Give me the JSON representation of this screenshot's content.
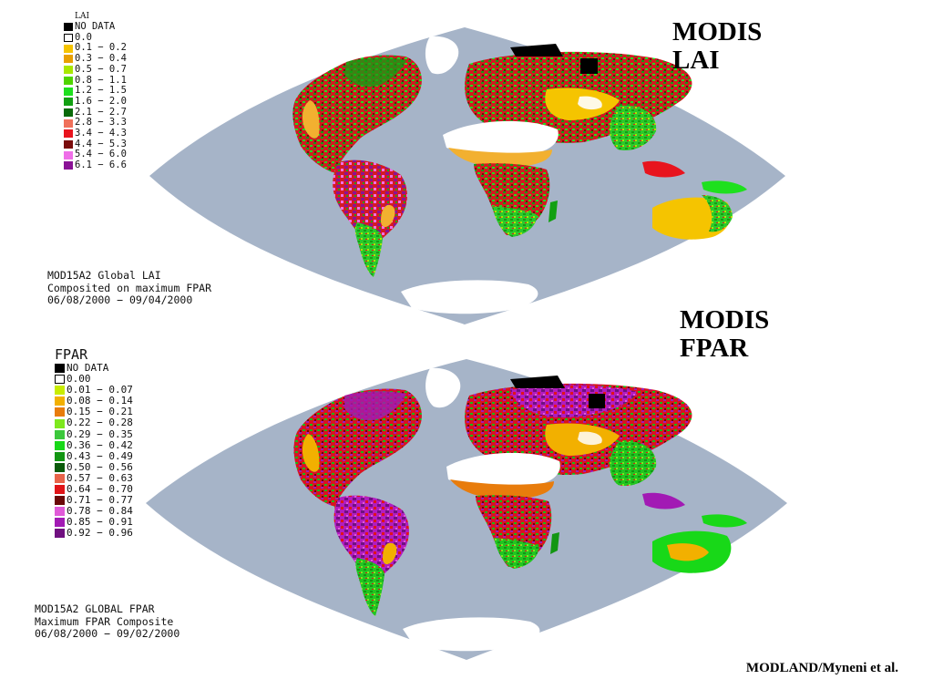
{
  "lai_panel": {
    "heading": [
      "MODIS",
      "LAI"
    ],
    "legend_title": "LAI",
    "legend": [
      {
        "label": "NO DATA",
        "color": "#000000"
      },
      {
        "label": "0.0",
        "color": "#ffffff"
      },
      {
        "label": "0.1 − 0.2",
        "color": "#f5c400"
      },
      {
        "label": "0.3 − 0.4",
        "color": "#e8a000"
      },
      {
        "label": "0.5 − 0.7",
        "color": "#a8e800"
      },
      {
        "label": "0.8 − 1.1",
        "color": "#4fd400"
      },
      {
        "label": "1.2 − 1.5",
        "color": "#1ee01e"
      },
      {
        "label": "1.6 − 2.0",
        "color": "#12a012"
      },
      {
        "label": "2.1 − 2.7",
        "color": "#0a6a0a"
      },
      {
        "label": "2.8 − 3.3",
        "color": "#f0705a"
      },
      {
        "label": "3.4 − 4.3",
        "color": "#e8141e"
      },
      {
        "label": "4.4 − 5.3",
        "color": "#7a0c0c"
      },
      {
        "label": "5.4 − 6.0",
        "color": "#ef6ee8"
      },
      {
        "label": "6.1 − 6.6",
        "color": "#8a1296"
      }
    ],
    "caption": [
      "MOD15A2 Global LAI",
      "Composited on maximum FPAR",
      "06/08/2000 − 09/04/2000"
    ]
  },
  "fpar_panel": {
    "heading": [
      "MODIS",
      "FPAR"
    ],
    "legend_title": "FPAR",
    "legend": [
      {
        "label": "NO DATA",
        "color": "#000000"
      },
      {
        "label": "0.00",
        "color": "#ffffff"
      },
      {
        "label": "0.01 − 0.07",
        "color": "#c8ec00"
      },
      {
        "label": "0.08 − 0.14",
        "color": "#f2b000"
      },
      {
        "label": "0.15 − 0.21",
        "color": "#e87c0c"
      },
      {
        "label": "0.22 − 0.28",
        "color": "#7ee81e"
      },
      {
        "label": "0.29 − 0.35",
        "color": "#3cc83c"
      },
      {
        "label": "0.36 − 0.42",
        "color": "#18d818"
      },
      {
        "label": "0.43 − 0.49",
        "color": "#129612"
      },
      {
        "label": "0.50 − 0.56",
        "color": "#0a5a0a"
      },
      {
        "label": "0.57 − 0.63",
        "color": "#e8644a"
      },
      {
        "label": "0.64 − 0.70",
        "color": "#e01418"
      },
      {
        "label": "0.71 − 0.77",
        "color": "#6a0808"
      },
      {
        "label": "0.78 − 0.84",
        "color": "#e05ad8"
      },
      {
        "label": "0.85 − 0.91",
        "color": "#a21ab4"
      },
      {
        "label": "0.92 − 0.96",
        "color": "#701080"
      }
    ],
    "caption": [
      "MOD15A2 GLOBAL FPAR",
      "Maximum FPAR Composite",
      "06/08/2000 − 09/02/2000"
    ]
  },
  "credit": "MODLAND/Myneni et al.",
  "colors": {
    "ocean": "#a6b4c8",
    "sand": "#ffffff",
    "nodata": "#000000"
  }
}
